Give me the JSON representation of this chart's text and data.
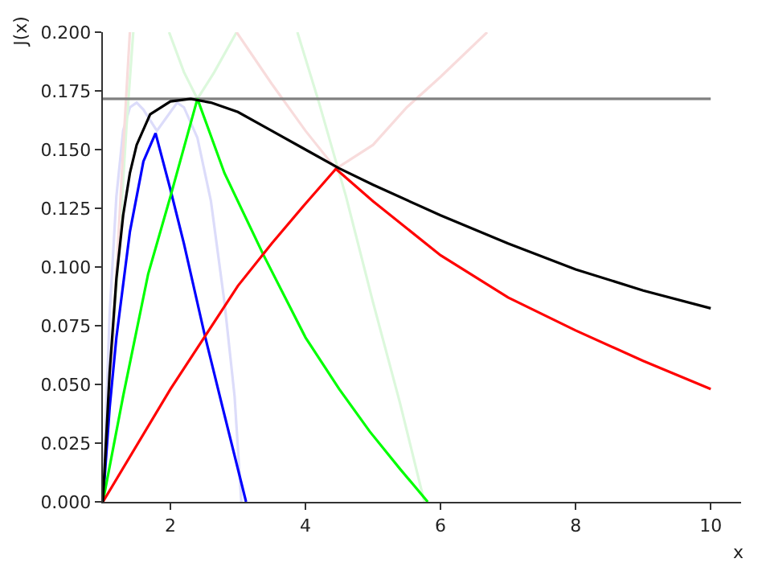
{
  "chart_data": {
    "type": "line",
    "xlabel": "x",
    "ylabel": "J(x)",
    "xlim": [
      1,
      10.45
    ],
    "ylim": [
      0,
      0.2
    ],
    "xticks": [
      2,
      4,
      6,
      8,
      10
    ],
    "yticks": [
      {
        "value": 0,
        "label": "0.000"
      },
      {
        "value": 0.025,
        "label": "0.025"
      },
      {
        "value": 0.05,
        "label": "0.050"
      },
      {
        "value": 0.075,
        "label": "0.075"
      },
      {
        "value": 0.1,
        "label": "0.100"
      },
      {
        "value": 0.125,
        "label": "0.125"
      },
      {
        "value": 0.15,
        "label": "0.150"
      },
      {
        "value": 0.175,
        "label": "0.175"
      },
      {
        "value": 0.2,
        "label": "0.200"
      }
    ],
    "marker": "none",
    "line_style": "solid",
    "series": [
      {
        "color": "#dcdcfa",
        "x": [
          1,
          1.1,
          1.2,
          1.3,
          1.4,
          1.5,
          1.6,
          1.8,
          2.0,
          2.1,
          2.2,
          2.4,
          2.6,
          2.8,
          2.95,
          3.05
        ],
        "values": [
          0,
          0.08,
          0.13,
          0.158,
          0.168,
          0.17,
          0.167,
          0.158,
          0.166,
          0.17,
          0.168,
          0.155,
          0.128,
          0.085,
          0.045,
          0
        ]
      },
      {
        "color": "#dcf8dc",
        "x": [
          1,
          1.2,
          1.35,
          1.45,
          null,
          1.98,
          2.2,
          2.4,
          2.65,
          2.98,
          null,
          3.88,
          4.2,
          4.6,
          5.0,
          5.4,
          5.76
        ],
        "values": [
          0,
          0.09,
          0.16,
          0.2,
          null,
          0.2,
          0.183,
          0.1716,
          0.183,
          0.2,
          null,
          0.2,
          0.17,
          0.13,
          0.085,
          0.042,
          0
        ]
      },
      {
        "color": "#f8dcdc",
        "x": [
          1,
          1.15,
          1.3,
          1.4,
          null,
          2.98,
          3.5,
          4.0,
          4.45,
          5.0,
          5.5,
          6.0,
          6.69
        ],
        "values": [
          0,
          0.07,
          0.15,
          0.2,
          null,
          0.2,
          0.178,
          0.158,
          0.1418,
          0.152,
          0.168,
          0.181,
          0.2
        ]
      },
      {
        "color": "#808080",
        "x": [
          1,
          10
        ],
        "values": [
          0.1716,
          0.1716
        ]
      },
      {
        "color": "#0000ff",
        "x": [
          1,
          1.1,
          1.2,
          1.4,
          1.6,
          1.78,
          2.0,
          2.2,
          2.5,
          2.8,
          3.12
        ],
        "values": [
          0,
          0.04,
          0.07,
          0.115,
          0.145,
          0.157,
          0.133,
          0.11,
          0.072,
          0.037,
          0
        ]
      },
      {
        "color": "#00ff00",
        "x": [
          1,
          1.3,
          1.67,
          2.0,
          2.4,
          2.8,
          3.38,
          4.0,
          4.5,
          4.95,
          5.4,
          5.81
        ],
        "values": [
          0,
          0.045,
          0.097,
          0.13,
          0.1716,
          0.14,
          0.105,
          0.07,
          0.048,
          0.03,
          0.014,
          0
        ]
      },
      {
        "color": "#ff0000",
        "x": [
          1,
          2,
          2.5,
          3,
          3.5,
          4,
          4.45,
          5,
          6,
          7,
          8,
          9,
          10
        ],
        "values": [
          0,
          0.048,
          0.07,
          0.092,
          0.11,
          0.127,
          0.1418,
          0.128,
          0.105,
          0.087,
          0.073,
          0.06,
          0.048
        ]
      },
      {
        "color": "#000000",
        "x": [
          1,
          1.1,
          1.2,
          1.3,
          1.4,
          1.5,
          1.7,
          2,
          2.3,
          2.6,
          3,
          3.5,
          4,
          4.5,
          5,
          6,
          7,
          8,
          9,
          10
        ],
        "values": [
          0,
          0.055,
          0.095,
          0.122,
          0.14,
          0.152,
          0.165,
          0.1705,
          0.1716,
          0.17,
          0.166,
          0.158,
          0.15,
          0.142,
          0.135,
          0.122,
          0.11,
          0.099,
          0.09,
          0.0824
        ]
      }
    ]
  }
}
